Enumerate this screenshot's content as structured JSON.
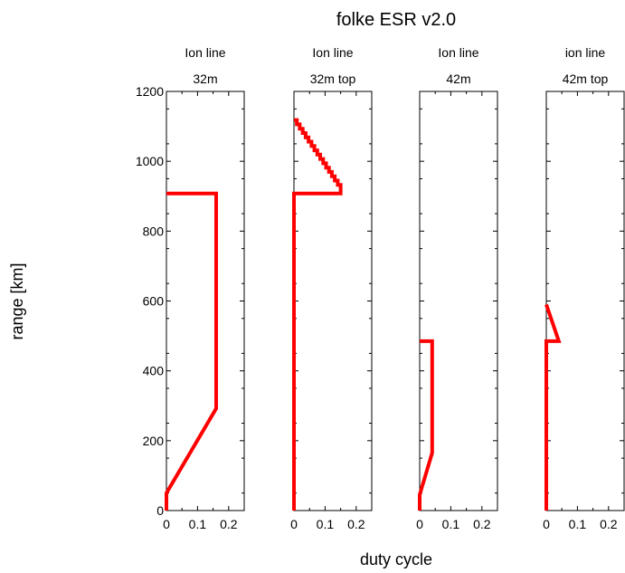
{
  "figure": {
    "title": "folke ESR v2.0",
    "ylabel": "range [km]",
    "xlabel": "duty cycle"
  },
  "chart_data": [
    {
      "type": "line",
      "title_line1": "Ion line",
      "title_line2": "32m",
      "xlim": [
        0,
        0.25
      ],
      "ylim": [
        0,
        1200
      ],
      "xticks": [
        "0",
        "0.1",
        "0.2"
      ],
      "xtick_values": [
        0,
        0.1,
        0.2
      ],
      "yticks": [
        "0",
        "200",
        "400",
        "600",
        "800",
        "1000",
        "1200"
      ],
      "ytick_values": [
        0,
        200,
        400,
        600,
        800,
        1000,
        1200
      ],
      "show_yticklabels": true,
      "series": [
        {
          "color": "#ff0000",
          "x": [
            0,
            0,
            0.16,
            0.16,
            0
          ],
          "y": [
            0,
            50,
            292,
            908,
            908
          ]
        }
      ]
    },
    {
      "type": "line",
      "title_line1": "Ion line",
      "title_line2": "32m top",
      "xlim": [
        0,
        0.25
      ],
      "ylim": [
        0,
        1200
      ],
      "xticks": [
        "0",
        "0.1",
        "0.2"
      ],
      "xtick_values": [
        0,
        0.1,
        0.2
      ],
      "yticks": [
        "0",
        "200",
        "400",
        "600",
        "800",
        "1000",
        "1200"
      ],
      "ytick_values": [
        0,
        200,
        400,
        600,
        800,
        1000,
        1200
      ],
      "show_yticklabels": false,
      "series": [
        {
          "color": "#ff0000",
          "x": [
            0,
            0,
            0.15,
            0.15,
            0
          ],
          "y": [
            0,
            908,
            908,
            920,
            1118
          ],
          "staircase_segment": 3
        }
      ]
    },
    {
      "type": "line",
      "title_line1": "Ion line",
      "title_line2": "42m",
      "xlim": [
        0,
        0.25
      ],
      "ylim": [
        0,
        1200
      ],
      "xticks": [
        "0",
        "0.1",
        "0.2"
      ],
      "xtick_values": [
        0,
        0.1,
        0.2
      ],
      "yticks": [
        "0",
        "200",
        "400",
        "600",
        "800",
        "1000",
        "1200"
      ],
      "ytick_values": [
        0,
        200,
        400,
        600,
        800,
        1000,
        1200
      ],
      "show_yticklabels": false,
      "series": [
        {
          "color": "#ff0000",
          "x": [
            0,
            0,
            0.04,
            0.04,
            0
          ],
          "y": [
            0,
            45,
            165,
            485,
            485
          ]
        }
      ]
    },
    {
      "type": "line",
      "title_line1": "ion line",
      "title_line2": "42m top",
      "xlim": [
        0,
        0.25
      ],
      "ylim": [
        0,
        1200
      ],
      "xticks": [
        "0",
        "0.1",
        "0.2"
      ],
      "xtick_values": [
        0,
        0.1,
        0.2
      ],
      "yticks": [
        "0",
        "200",
        "400",
        "600",
        "800",
        "1000",
        "1200"
      ],
      "ytick_values": [
        0,
        200,
        400,
        600,
        800,
        1000,
        1200
      ],
      "show_yticklabels": false,
      "series": [
        {
          "color": "#ff0000",
          "x": [
            0,
            0,
            0.04,
            0
          ],
          "y": [
            0,
            485,
            485,
            590
          ]
        }
      ]
    }
  ]
}
